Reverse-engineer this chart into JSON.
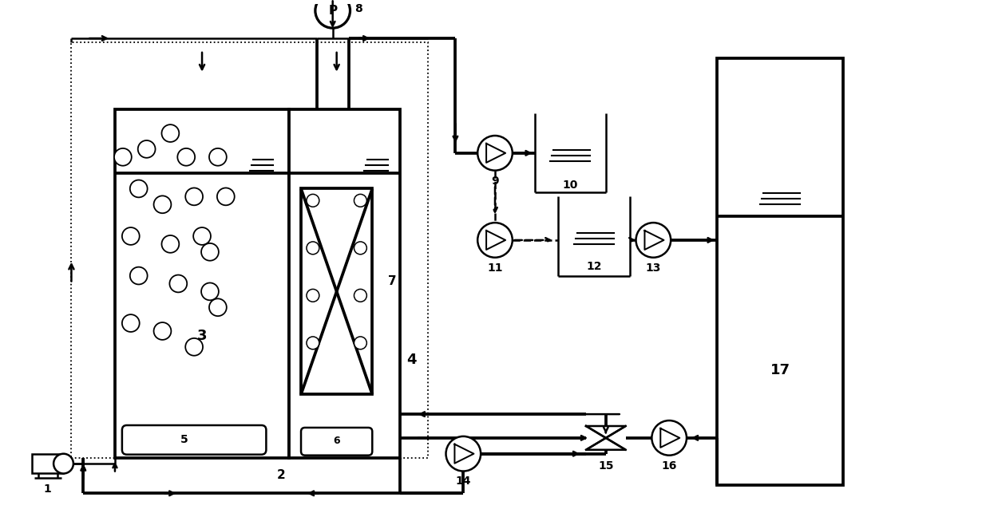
{
  "bg_color": "#ffffff",
  "line_color": "#000000",
  "lw": 1.8,
  "fig_width": 12.4,
  "fig_height": 6.53,
  "dpi": 100
}
